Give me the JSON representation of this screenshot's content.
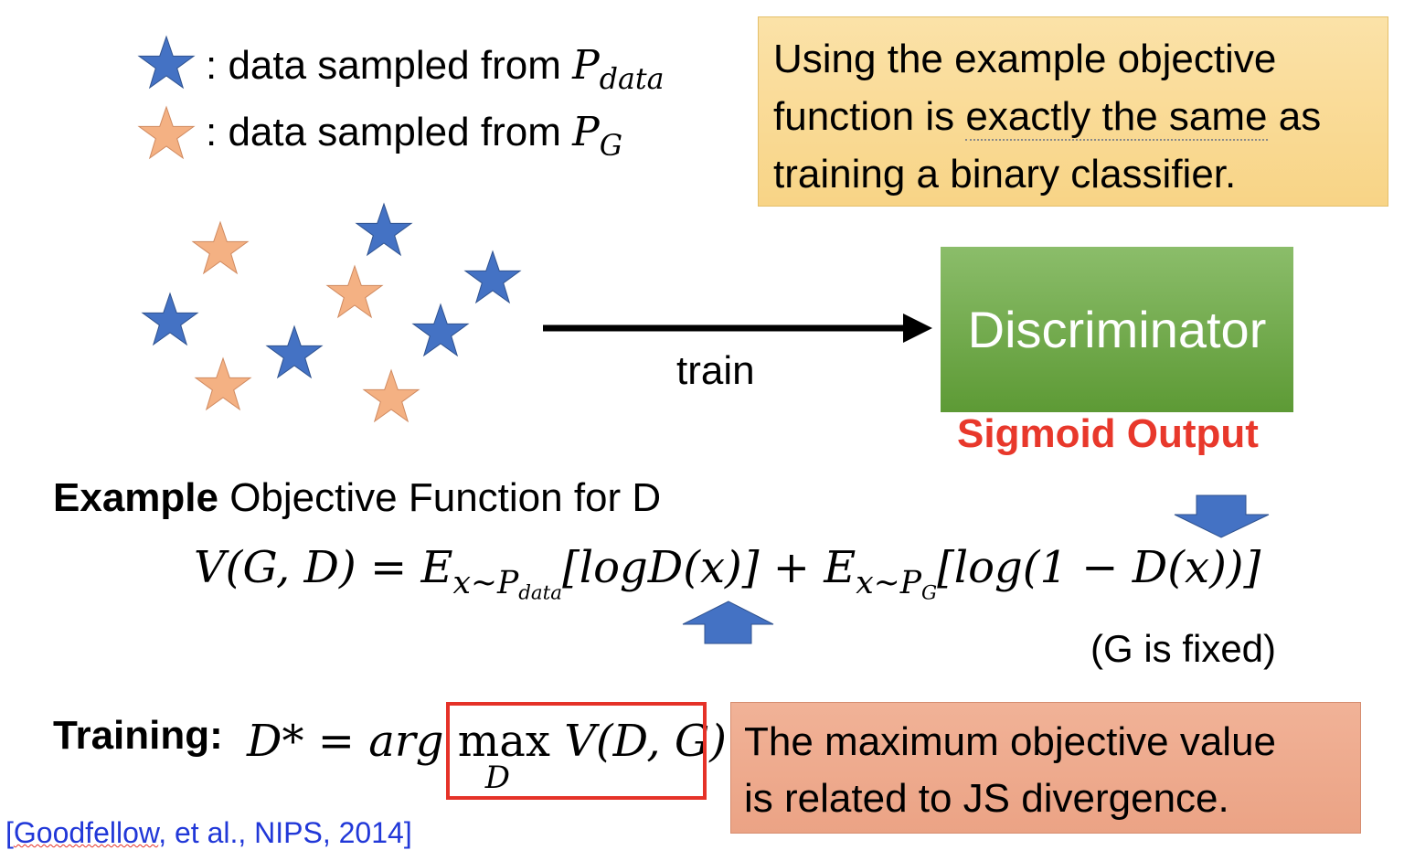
{
  "legend": {
    "real_text": ": data sampled from",
    "real_symbol": "P",
    "real_sub": "data",
    "fake_text": ": data sampled from",
    "fake_symbol": "P",
    "fake_sub": "G"
  },
  "note": {
    "line1": "Using the example objective",
    "line2_pre": "function is ",
    "line2_emph": "exactly the same",
    "line2_post": " as",
    "line3": "training a binary classifier."
  },
  "arrow_label": "train",
  "discriminator": {
    "label": "Discriminator",
    "output_label": "Sigmoid Output"
  },
  "objective": {
    "heading_bold": "Example",
    "heading_rest": " Objective Function for D",
    "lhs": "V(G, D) = E",
    "sub1": "x~P",
    "sub1b": "data",
    "term1": "[logD(x)] + E",
    "sub2": "x~P",
    "sub2b": "G",
    "term2": "[log(1 − D(x))]",
    "note": "(G is fixed)"
  },
  "training": {
    "label": "Training:",
    "lhs": "D* = arg ",
    "max": "max",
    "max_sub": "D",
    "rhs": " V(D, G)"
  },
  "js_note": {
    "line1": "The maximum objective value",
    "line2": "is related to JS divergence."
  },
  "citation": {
    "open": "[",
    "author": "Goodfellow",
    "rest": ", et al., NIPS, 2014]"
  },
  "colors": {
    "real_star": "#4472c4",
    "fake_star": "#f4b183",
    "arrow_blue": "#4472c4",
    "sigmoid_red": "#e8382b"
  }
}
